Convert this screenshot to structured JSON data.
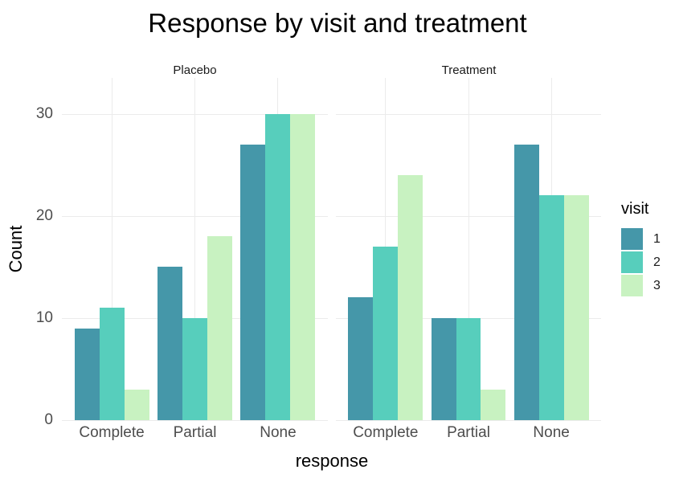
{
  "chart_data": {
    "type": "bar",
    "title": "Response by visit and treatment",
    "xlabel": "response",
    "ylabel": "Count",
    "categories": [
      "Complete",
      "Partial",
      "None"
    ],
    "yticks": [
      0,
      10,
      20,
      30
    ],
    "ylim": [
      0,
      33.5
    ],
    "grid": true,
    "grid_color": "#EBEBEB",
    "axis_text_color": "#4D4D4D",
    "background_color": "#FFFFFF",
    "legend": {
      "title": "visit",
      "position": "right",
      "items": [
        {
          "label": "1",
          "color": "#4597A9"
        },
        {
          "label": "2",
          "color": "#57CEBC"
        },
        {
          "label": "3",
          "color": "#C8F2C1"
        }
      ]
    },
    "facets": [
      {
        "label": "Placebo",
        "series": [
          {
            "name": "1",
            "values": [
              9,
              15,
              27
            ]
          },
          {
            "name": "2",
            "values": [
              11,
              10,
              30
            ]
          },
          {
            "name": "3",
            "values": [
              3,
              18,
              30
            ]
          }
        ]
      },
      {
        "label": "Treatment",
        "series": [
          {
            "name": "1",
            "values": [
              12,
              10,
              27
            ]
          },
          {
            "name": "2",
            "values": [
              17,
              10,
              22
            ]
          },
          {
            "name": "3",
            "values": [
              24,
              3,
              22
            ]
          }
        ]
      }
    ]
  }
}
